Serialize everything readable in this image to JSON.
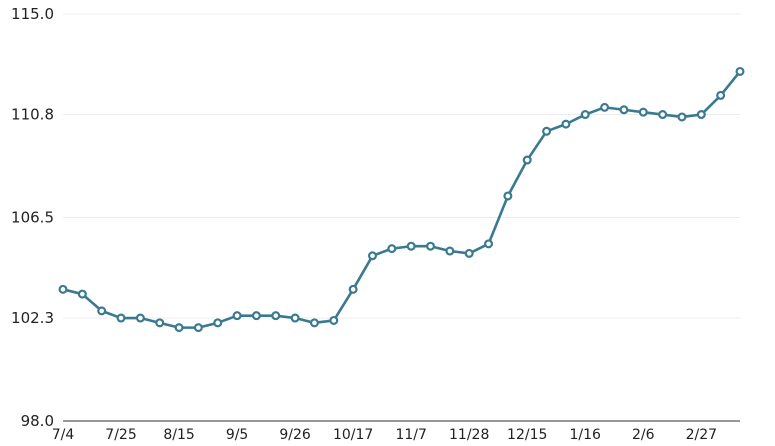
{
  "chart_data": {
    "type": "line",
    "title": "",
    "xlabel": "",
    "ylabel": "",
    "ylim": [
      98.0,
      115.0
    ],
    "yticks": [
      "115.0",
      "110.8",
      "106.5",
      "102.3",
      "98.0"
    ],
    "ytick_values": [
      115.0,
      110.8,
      106.5,
      102.3,
      98.0
    ],
    "xtick_labels": [
      "7/4",
      "7/25",
      "8/15",
      "9/5",
      "9/26",
      "10/17",
      "11/7",
      "11/28",
      "12/15",
      "1/16",
      "2/6",
      "2/27"
    ],
    "xtick_indices": [
      0,
      3,
      6,
      9,
      12,
      15,
      18,
      21,
      24,
      27,
      30,
      33
    ],
    "grid": true,
    "legend": "none",
    "color": "#3a7a90",
    "series": [
      {
        "values": [
          103.5,
          103.3,
          102.6,
          102.3,
          102.3,
          102.1,
          101.9,
          101.9,
          102.1,
          102.4,
          102.4,
          102.4,
          102.3,
          102.1,
          102.2,
          103.5,
          104.9,
          105.2,
          105.3,
          105.3,
          105.1,
          105.0,
          105.4,
          107.4,
          108.9,
          110.1,
          110.4,
          110.8,
          111.1,
          111.0,
          110.9,
          110.8,
          110.7,
          110.8,
          111.6,
          112.6
        ]
      }
    ]
  }
}
